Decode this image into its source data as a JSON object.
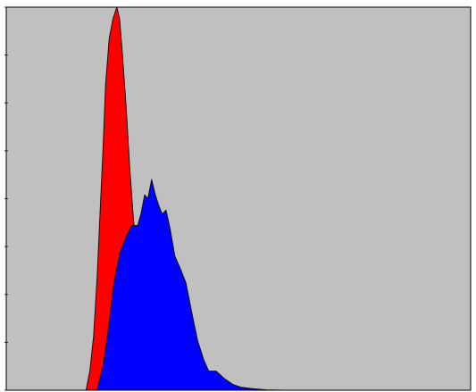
{
  "chart_data": {
    "type": "area",
    "xlim": [
      0,
      100
    ],
    "ylim": [
      0,
      100
    ],
    "grid": false,
    "legend": "none",
    "colors": {
      "plot_background": "#c0c0c0",
      "frame": "#000000",
      "tick": "#333333"
    },
    "y_ticks": [
      0,
      12.5,
      25,
      37.5,
      50,
      62.5,
      75,
      87.5,
      100
    ],
    "series": [
      {
        "color": "#ff0000",
        "x": [
          17.2,
          18.0,
          18.8,
          19.6,
          20.2,
          20.8,
          21.4,
          22.2,
          23.0,
          23.8,
          24.4,
          25.0,
          25.8,
          26.6,
          27.3,
          28.0,
          28.8,
          29.5,
          30.3
        ],
        "y": [
          0,
          5,
          14,
          30,
          46,
          62,
          80,
          92,
          97,
          100,
          97,
          88,
          74,
          58,
          46,
          36,
          16,
          4,
          0
        ]
      },
      {
        "color": "#0000ff",
        "x": [
          19.5,
          20.8,
          22.0,
          23.2,
          24.5,
          25.8,
          27.0,
          28.3,
          29.0,
          29.8,
          30.5,
          31.3,
          32.1,
          32.9,
          33.6,
          34.4,
          35.3,
          36.3,
          37.4,
          38.7,
          40.0,
          41.2,
          42.5,
          43.6,
          45.2,
          47.0,
          48.8,
          50.5,
          53.0,
          56.0,
          60.0
        ],
        "y": [
          0,
          6,
          16,
          28,
          36,
          40,
          43,
          43,
          46,
          51,
          50,
          55,
          51,
          48,
          46,
          47,
          42,
          35,
          32,
          28,
          20,
          13,
          8,
          5,
          5,
          3,
          1.5,
          0.8,
          0.4,
          0.1,
          0
        ]
      }
    ]
  }
}
